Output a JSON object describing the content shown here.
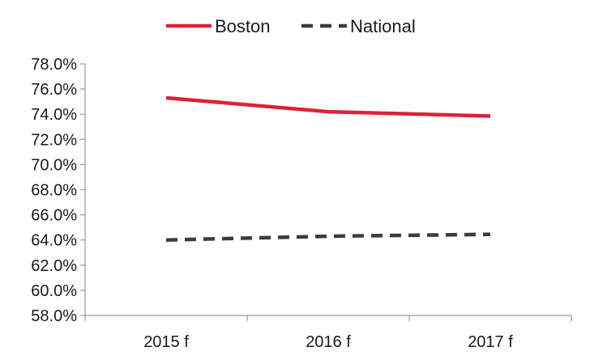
{
  "chart_data": {
    "type": "line",
    "categories": [
      "2015 f",
      "2016 f",
      "2017 f"
    ],
    "series": [
      {
        "name": "Boston",
        "values": [
          75.3,
          74.2,
          73.85
        ],
        "color": "#e0203a",
        "style": "solid"
      },
      {
        "name": "National",
        "values": [
          64.0,
          64.3,
          64.45
        ],
        "color": "#3c3c3c",
        "style": "dashed"
      }
    ],
    "title": "",
    "xlabel": "",
    "ylabel": "",
    "ylim": [
      58.0,
      78.0
    ],
    "ytick_step": 2.0,
    "ytick_labels": [
      "58.0%",
      "60.0%",
      "62.0%",
      "64.0%",
      "66.0%",
      "68.0%",
      "70.0%",
      "72.0%",
      "74.0%",
      "76.0%",
      "78.0%"
    ],
    "grid": false,
    "legend": {
      "position": "top-center",
      "entries": [
        "Boston",
        "National"
      ]
    }
  }
}
